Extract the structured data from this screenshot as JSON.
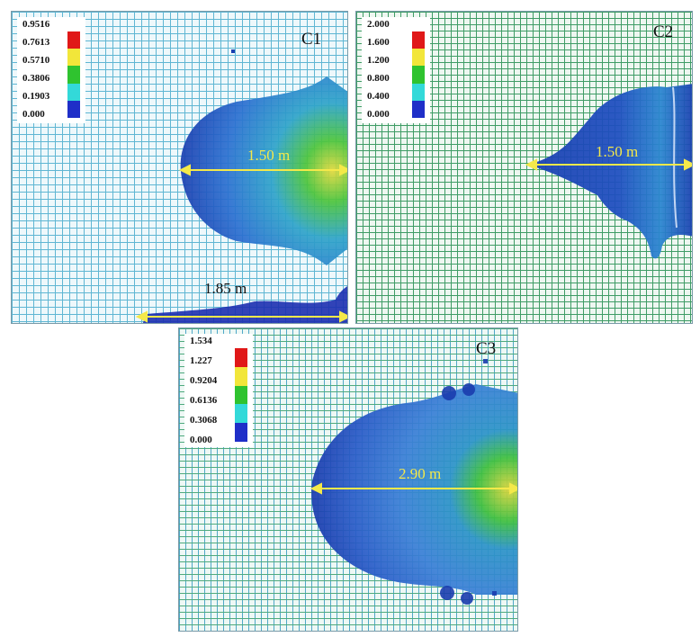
{
  "panels": {
    "c1": {
      "label": "C1",
      "legend_ticks": [
        "0.9516",
        "0.7613",
        "0.5710",
        "0.3806",
        "0.1903",
        "0.000"
      ],
      "measure_main": "1.50 m",
      "measure_lower": "1.85 m"
    },
    "c2": {
      "label": "C2",
      "legend_ticks": [
        "2.000",
        "1.600",
        "1.200",
        "0.800",
        "0.400",
        "0.000"
      ],
      "measure_main": "1.50 m"
    },
    "c3": {
      "label": "C3",
      "legend_ticks": [
        "1.534",
        "1.227",
        "0.9204",
        "0.6136",
        "0.3068",
        "0.000"
      ],
      "measure_main": "2.90 m"
    }
  },
  "colors": {
    "scale": [
      "#e01818",
      "#f2e63a",
      "#2fc32f",
      "#33d9d9",
      "#1f2fc8"
    ],
    "measure_arrow": "#f4e94a"
  }
}
